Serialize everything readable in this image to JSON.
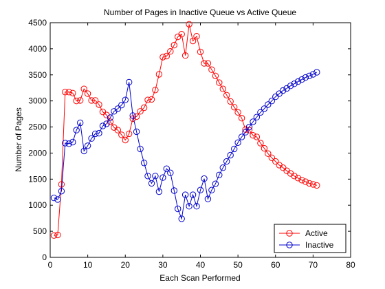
{
  "chart_data": {
    "type": "line",
    "title": "Number of Pages in Inactive Queue vs Active Queue",
    "xlabel": "Each Scan Performed",
    "ylabel": "Number of Pages",
    "xlim": [
      0,
      80
    ],
    "ylim": [
      0,
      4500
    ],
    "xticks": [
      0,
      10,
      20,
      30,
      40,
      50,
      60,
      70,
      80
    ],
    "yticks": [
      0,
      500,
      1000,
      1500,
      2000,
      2500,
      3000,
      3500,
      4000,
      4500
    ],
    "grid": false,
    "legend_position": "bottom-right",
    "marker": "circle",
    "series": [
      {
        "name": "Active",
        "color": "#ff0000",
        "x": [
          1,
          2,
          3,
          4,
          5,
          6,
          7,
          8,
          9,
          10,
          11,
          12,
          13,
          14,
          15,
          16,
          17,
          18,
          19,
          20,
          21,
          22,
          23,
          24,
          25,
          26,
          27,
          28,
          29,
          30,
          31,
          32,
          33,
          34,
          35,
          36,
          37,
          38,
          39,
          40,
          41,
          42,
          43,
          44,
          45,
          46,
          47,
          48,
          49,
          50,
          51,
          52,
          53,
          54,
          55,
          56,
          57,
          58,
          59,
          60,
          61,
          62,
          63,
          64,
          65,
          66,
          67,
          68,
          69,
          70,
          71
        ],
        "y": [
          420,
          430,
          1400,
          3170,
          3170,
          3150,
          3000,
          3010,
          3230,
          3140,
          3010,
          3010,
          2930,
          2790,
          2730,
          2600,
          2490,
          2440,
          2350,
          2250,
          2370,
          2660,
          2700,
          2800,
          2870,
          3020,
          3030,
          3210,
          3510,
          3840,
          3860,
          3950,
          4070,
          4230,
          4280,
          3870,
          4470,
          4150,
          4240,
          3940,
          3720,
          3720,
          3600,
          3480,
          3350,
          3230,
          3110,
          2990,
          2880,
          2780,
          2670,
          2450,
          2440,
          2340,
          2310,
          2190,
          2090,
          1990,
          1910,
          1840,
          1770,
          1720,
          1660,
          1610,
          1560,
          1520,
          1480,
          1450,
          1420,
          1400,
          1380
        ]
      },
      {
        "name": "Inactive",
        "color": "#0000cc",
        "x": [
          1,
          2,
          3,
          4,
          5,
          6,
          7,
          8,
          9,
          10,
          11,
          12,
          13,
          14,
          15,
          16,
          17,
          18,
          19,
          20,
          21,
          22,
          23,
          24,
          25,
          26,
          27,
          28,
          29,
          30,
          31,
          32,
          33,
          34,
          35,
          36,
          37,
          38,
          39,
          40,
          41,
          42,
          43,
          44,
          45,
          46,
          47,
          48,
          49,
          50,
          51,
          52,
          53,
          54,
          55,
          56,
          57,
          58,
          59,
          60,
          61,
          62,
          63,
          64,
          65,
          66,
          67,
          68,
          69,
          70,
          71
        ],
        "y": [
          1140,
          1110,
          1270,
          2190,
          2180,
          2210,
          2440,
          2580,
          2040,
          2140,
          2280,
          2370,
          2380,
          2520,
          2560,
          2680,
          2800,
          2850,
          2920,
          3020,
          3360,
          2720,
          2410,
          2080,
          1810,
          1560,
          1420,
          1560,
          1260,
          1530,
          1700,
          1620,
          1280,
          930,
          740,
          1200,
          980,
          1200,
          980,
          1290,
          1510,
          1120,
          1290,
          1410,
          1580,
          1720,
          1840,
          1960,
          2080,
          2200,
          2310,
          2400,
          2500,
          2600,
          2690,
          2780,
          2850,
          2930,
          3000,
          3080,
          3140,
          3200,
          3240,
          3290,
          3330,
          3370,
          3410,
          3450,
          3480,
          3510,
          3550
        ]
      }
    ]
  }
}
